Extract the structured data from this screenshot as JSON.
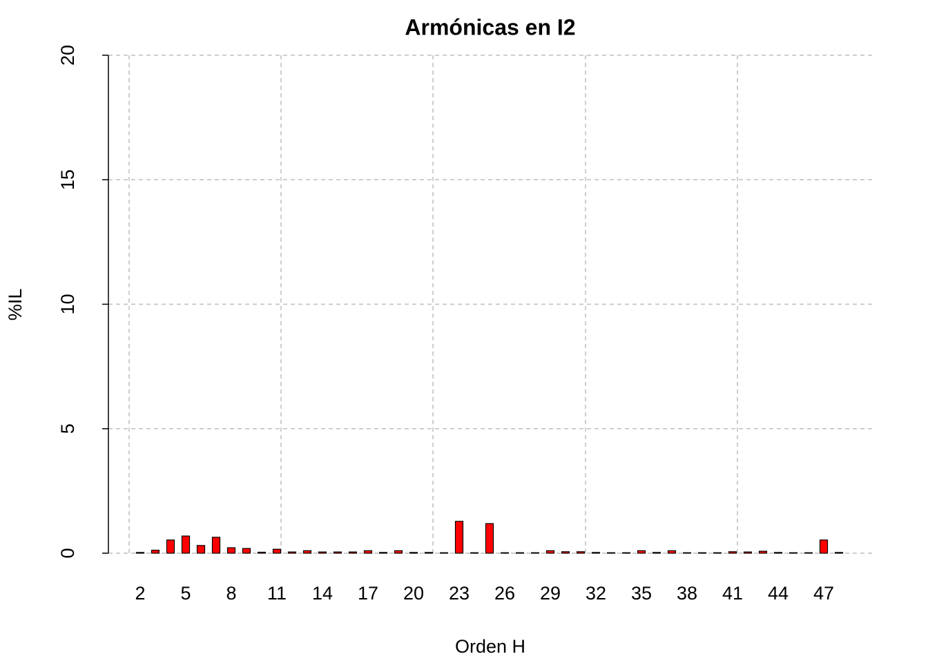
{
  "chart_data": {
    "type": "bar",
    "title": "Armónicas en I2",
    "x_label": "Orden H",
    "y_label": "%IL",
    "categories": [
      2,
      null,
      null,
      5,
      null,
      null,
      8,
      null,
      null,
      11,
      null,
      null,
      14,
      null,
      null,
      17,
      null,
      null,
      20,
      null,
      null,
      23,
      null,
      null,
      26,
      null,
      null,
      29,
      null,
      null,
      32,
      null,
      null,
      35,
      null,
      null,
      38,
      null,
      null,
      41,
      null,
      null,
      44,
      null,
      null,
      47,
      null
    ],
    "values": [
      0.03,
      0.12,
      0.53,
      0.69,
      0.31,
      0.64,
      0.22,
      0.19,
      0.04,
      0.16,
      0.05,
      0.1,
      0.05,
      0.05,
      0.05,
      0.1,
      0.03,
      0.1,
      0.03,
      0.03,
      0.02,
      1.28,
      0.02,
      1.19,
      0.02,
      0.02,
      0.02,
      0.1,
      0.06,
      0.06,
      0.03,
      0.02,
      0.02,
      0.1,
      0.03,
      0.1,
      0.02,
      0.02,
      0.02,
      0.06,
      0.05,
      0.08,
      0.03,
      0.02,
      0.02,
      0.53,
      0.03
    ],
    "color": "#ff0000",
    "ylim": [
      0,
      20
    ],
    "yticks": [
      0,
      5,
      10,
      15,
      20
    ],
    "grid": true
  }
}
